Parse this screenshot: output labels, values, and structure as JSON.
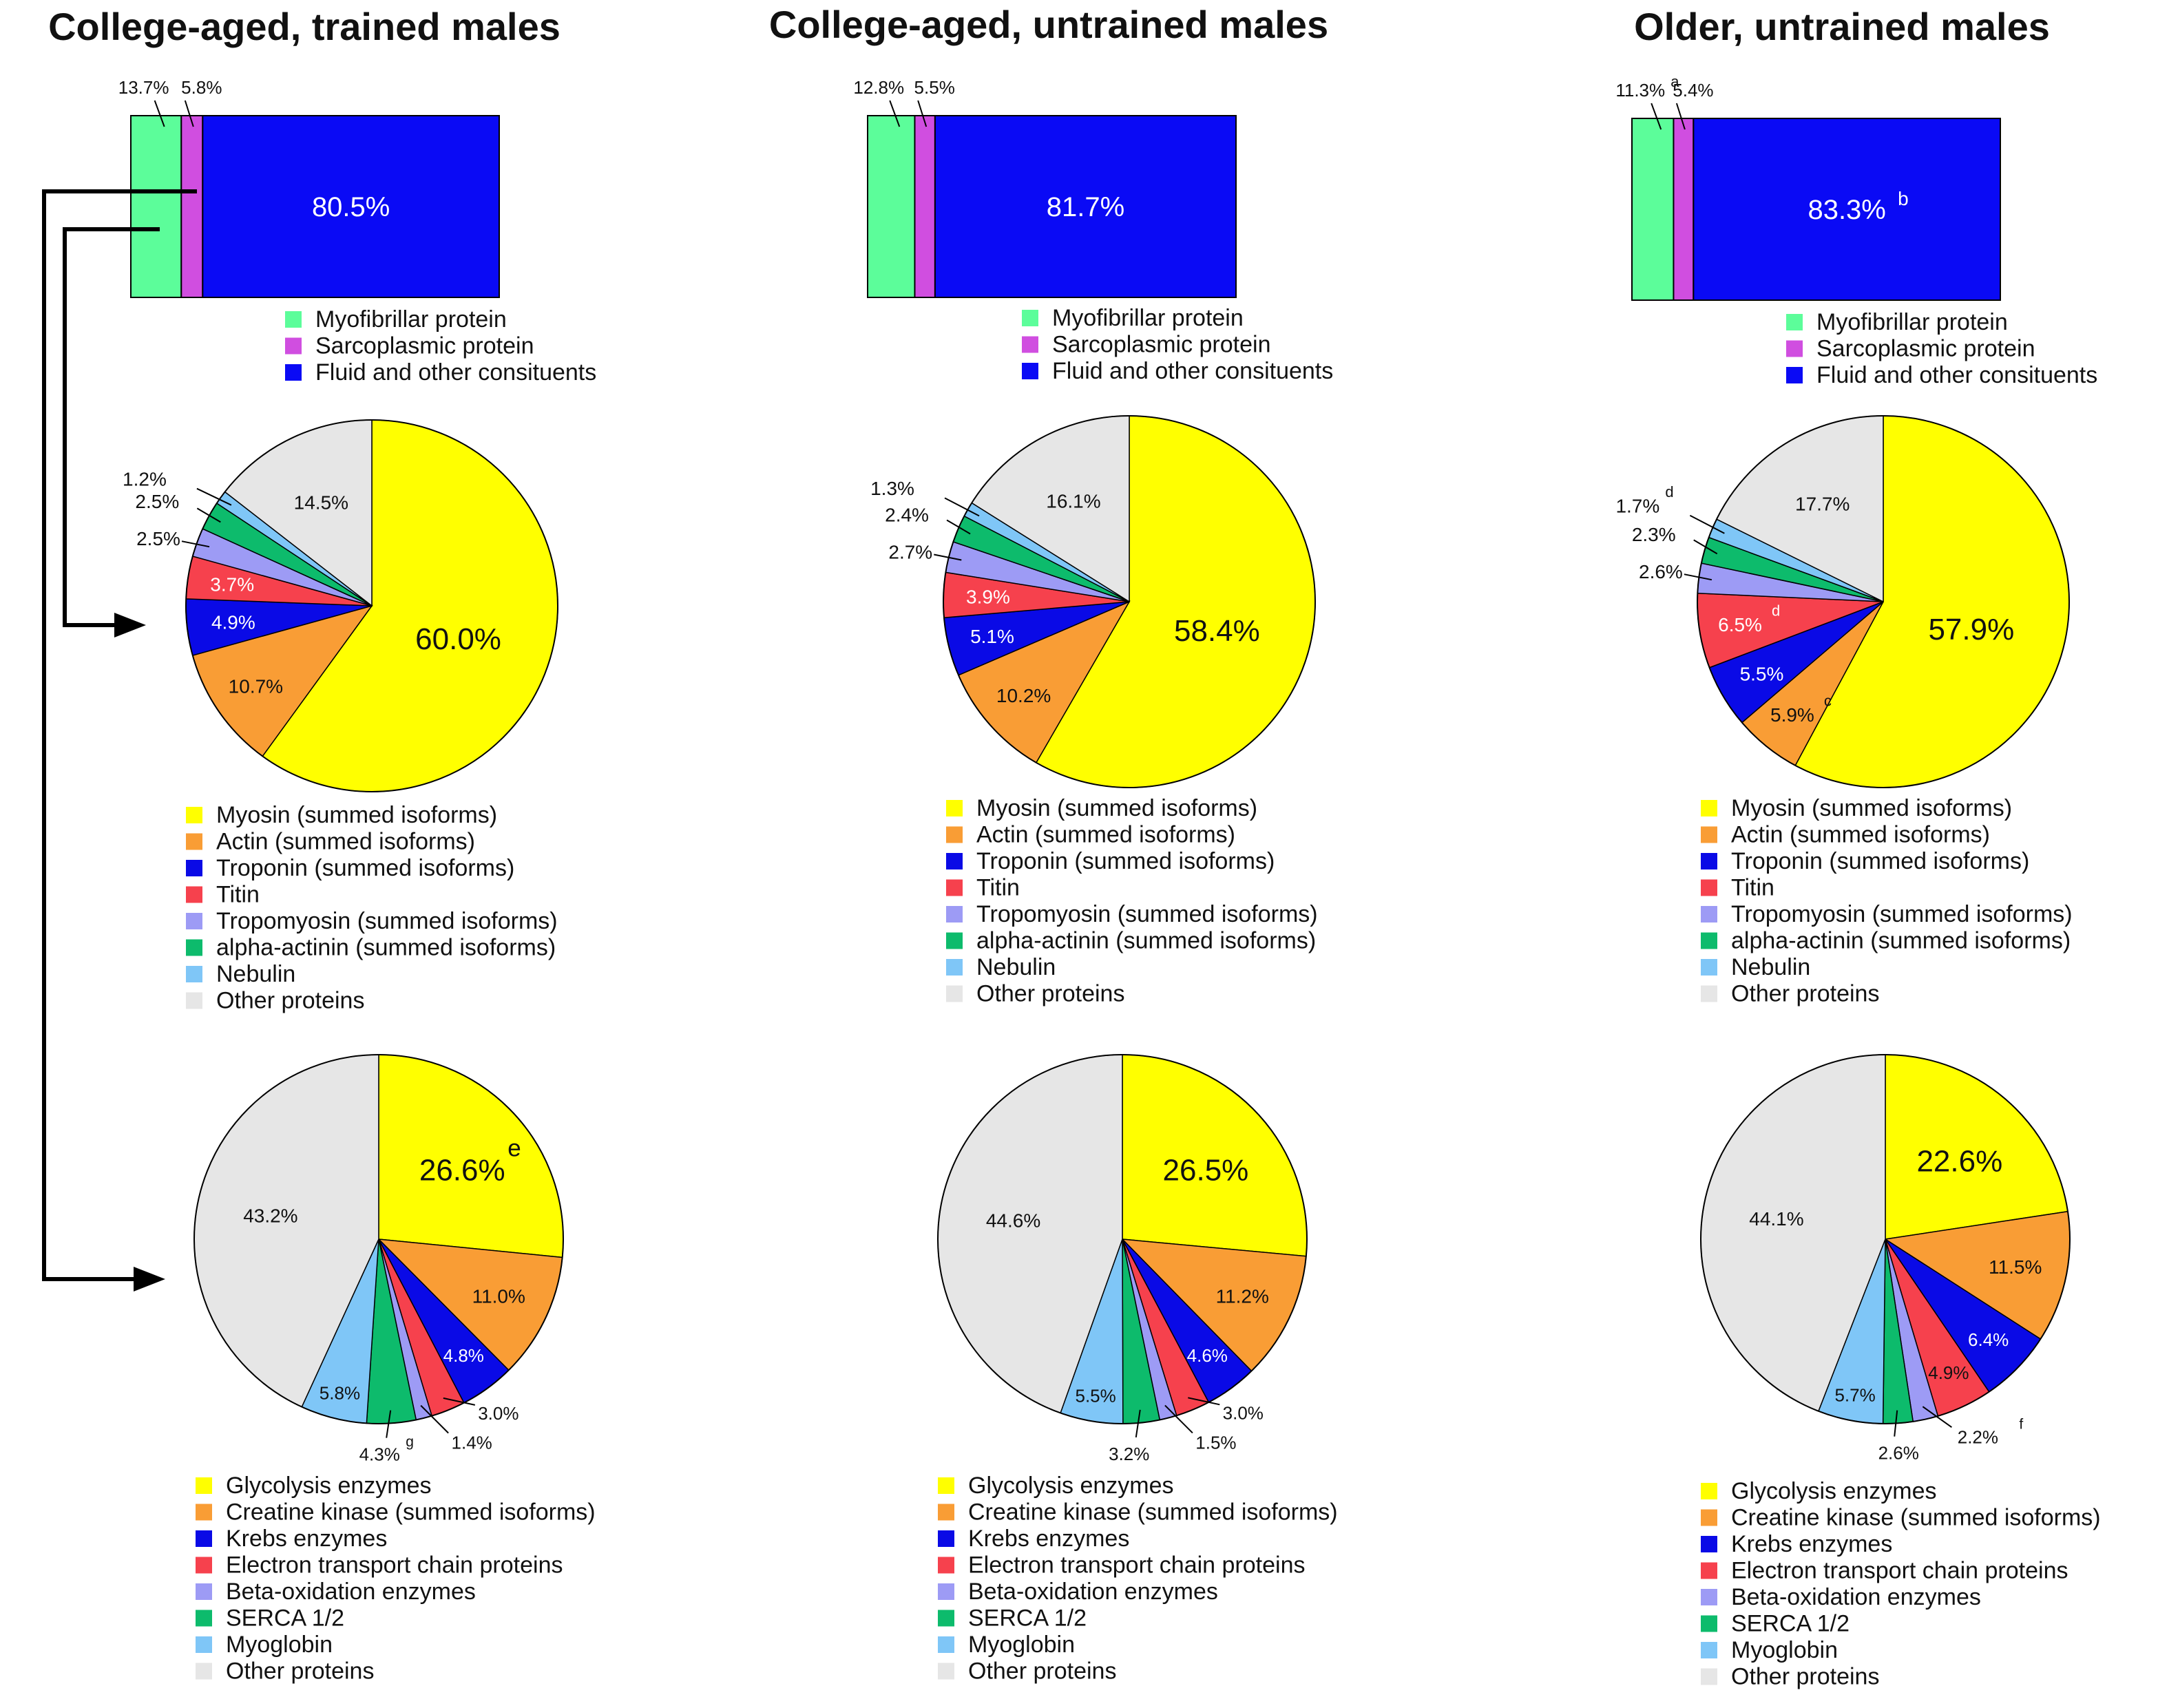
{
  "colors": {
    "myofibrillar": "#5cfd9a",
    "sarcoplasmic": "#d04ee0",
    "fluid": "#0a0af5",
    "myosin": "#ffff00",
    "actin": "#f99d35",
    "troponin": "#0a0ae6",
    "titin": "#f6414d",
    "tropomyosin": "#9d9bf5",
    "alpha_actinin": "#0dbb6c",
    "nebulin": "#7fc6f7",
    "other": "#e6e6e6",
    "glycolysis": "#ffff00",
    "creatine_kinase": "#f99d35",
    "krebs": "#0a0ae6",
    "etc": "#f6414d",
    "beta_ox": "#9d9bf5",
    "serca": "#0dbb6c",
    "myoglobin": "#7fc6f7",
    "arrow": "#000000"
  },
  "groups": [
    {
      "title": "College-aged, trained males"
    },
    {
      "title": "College-aged, untrained males"
    },
    {
      "title": "Older, untrained males"
    }
  ],
  "legends": {
    "composition": [
      "Myofibrillar protein",
      "Sarcoplasmic protein",
      "Fluid and other consituents"
    ],
    "myofibrillar": [
      "Myosin (summed isoforms)",
      "Actin (summed isoforms)",
      "Troponin (summed isoforms)",
      "Titin",
      "Tropomyosin (summed isoforms)",
      "alpha-actinin (summed isoforms)",
      "Nebulin",
      "Other proteins"
    ],
    "sarcoplasmic": [
      "Glycolysis enzymes",
      "Creatine kinase (summed isoforms)",
      "Krebs enzymes",
      "Electron transport chain proteins",
      "Beta-oxidation enzymes",
      "SERCA 1/2",
      "Myoglobin",
      "Other proteins"
    ]
  },
  "chart_data": [
    {
      "type": "bar",
      "title": "College-aged, trained males",
      "stacked": true,
      "categories": [
        "Myofibrillar protein",
        "Sarcoplasmic protein",
        "Fluid and other consituents"
      ],
      "values": [
        13.7,
        5.8,
        80.5
      ],
      "labels": [
        "13.7%",
        "5.8%",
        "80.5%"
      ],
      "superscripts": [
        "",
        "",
        ""
      ]
    },
    {
      "type": "bar",
      "title": "College-aged, untrained males",
      "stacked": true,
      "categories": [
        "Myofibrillar protein",
        "Sarcoplasmic protein",
        "Fluid and other consituents"
      ],
      "values": [
        12.8,
        5.5,
        81.7
      ],
      "labels": [
        "12.8%",
        "5.5%",
        "81.7%"
      ],
      "superscripts": [
        "",
        "",
        ""
      ]
    },
    {
      "type": "bar",
      "title": "Older, untrained males",
      "stacked": true,
      "categories": [
        "Myofibrillar protein",
        "Sarcoplasmic protein",
        "Fluid and other consituents"
      ],
      "values": [
        11.3,
        5.4,
        83.3
      ],
      "labels": [
        "11.3%",
        "5.4%",
        "83.3%"
      ],
      "superscripts": [
        "a",
        "",
        "b"
      ]
    },
    {
      "type": "pie",
      "title": "Myofibrillar protein - College-aged, trained males",
      "categories": [
        "Myosin (summed isoforms)",
        "Actin (summed isoforms)",
        "Troponin (summed isoforms)",
        "Titin",
        "Tropomyosin (summed isoforms)",
        "alpha-actinin (summed isoforms)",
        "Nebulin",
        "Other proteins"
      ],
      "values": [
        60.0,
        10.7,
        4.9,
        3.7,
        2.5,
        2.5,
        1.2,
        14.5
      ],
      "labels": [
        "60.0%",
        "10.7%",
        "4.9%",
        "3.7%",
        "2.5%",
        "2.5%",
        "1.2%",
        "14.5%"
      ],
      "superscripts": [
        "",
        "",
        "",
        "",
        "",
        "",
        "",
        ""
      ]
    },
    {
      "type": "pie",
      "title": "Myofibrillar protein - College-aged, untrained males",
      "categories": [
        "Myosin (summed isoforms)",
        "Actin (summed isoforms)",
        "Troponin (summed isoforms)",
        "Titin",
        "Tropomyosin (summed isoforms)",
        "alpha-actinin (summed isoforms)",
        "Nebulin",
        "Other proteins"
      ],
      "values": [
        58.4,
        10.2,
        5.1,
        3.9,
        2.7,
        2.4,
        1.3,
        16.1
      ],
      "labels": [
        "58.4%",
        "10.2%",
        "5.1%",
        "3.9%",
        "2.7%",
        "2.4%",
        "1.3%",
        "16.1%"
      ],
      "superscripts": [
        "",
        "",
        "",
        "",
        "",
        "",
        "",
        ""
      ]
    },
    {
      "type": "pie",
      "title": "Myofibrillar protein - Older, untrained males",
      "categories": [
        "Myosin (summed isoforms)",
        "Actin (summed isoforms)",
        "Troponin (summed isoforms)",
        "Titin",
        "Tropomyosin (summed isoforms)",
        "alpha-actinin (summed isoforms)",
        "Nebulin",
        "Other proteins"
      ],
      "values": [
        57.9,
        5.9,
        5.5,
        6.5,
        2.6,
        2.3,
        1.7,
        17.7
      ],
      "labels": [
        "57.9%",
        "5.9%",
        "5.5%",
        "6.5%",
        "2.6%",
        "2.3%",
        "1.7%",
        "17.7%"
      ],
      "superscripts": [
        "",
        "c",
        "",
        "d",
        "",
        "",
        "d",
        ""
      ]
    },
    {
      "type": "pie",
      "title": "Sarcoplasmic protein - College-aged, trained males",
      "categories": [
        "Glycolysis enzymes",
        "Creatine kinase (summed isoforms)",
        "Krebs enzymes",
        "Electron transport chain proteins",
        "Beta-oxidation enzymes",
        "SERCA 1/2",
        "Myoglobin",
        "Other proteins"
      ],
      "values": [
        26.6,
        11.0,
        4.8,
        3.0,
        1.4,
        4.3,
        5.8,
        43.2
      ],
      "labels": [
        "26.6%",
        "11.0%",
        "4.8%",
        "3.0%",
        "1.4%",
        "4.3%",
        "5.8%",
        "43.2%"
      ],
      "superscripts": [
        "e",
        "",
        "",
        "",
        "",
        "g",
        "",
        ""
      ]
    },
    {
      "type": "pie",
      "title": "Sarcoplasmic protein - College-aged, untrained males",
      "categories": [
        "Glycolysis enzymes",
        "Creatine kinase (summed isoforms)",
        "Krebs enzymes",
        "Electron transport chain proteins",
        "Beta-oxidation enzymes",
        "SERCA 1/2",
        "Myoglobin",
        "Other proteins"
      ],
      "values": [
        26.5,
        11.2,
        4.6,
        3.0,
        1.5,
        3.2,
        5.5,
        44.6
      ],
      "labels": [
        "26.5%",
        "11.2%",
        "4.6%",
        "3.0%",
        "1.5%",
        "3.2%",
        "5.5%",
        "44.6%"
      ],
      "superscripts": [
        "",
        "",
        "",
        "",
        "",
        "",
        "",
        ""
      ]
    },
    {
      "type": "pie",
      "title": "Sarcoplasmic protein - Older, untrained males",
      "categories": [
        "Glycolysis enzymes",
        "Creatine kinase (summed isoforms)",
        "Krebs enzymes",
        "Electron transport chain proteins",
        "Beta-oxidation enzymes",
        "SERCA 1/2",
        "Myoglobin",
        "Other proteins"
      ],
      "values": [
        22.6,
        11.5,
        6.4,
        4.9,
        2.2,
        2.6,
        5.7,
        44.1
      ],
      "labels": [
        "22.6%",
        "11.5%",
        "6.4%",
        "4.9%",
        "2.2%",
        "2.6%",
        "5.7%",
        "44.1%"
      ],
      "superscripts": [
        "",
        "",
        "",
        "",
        "f",
        "",
        "",
        ""
      ]
    }
  ]
}
